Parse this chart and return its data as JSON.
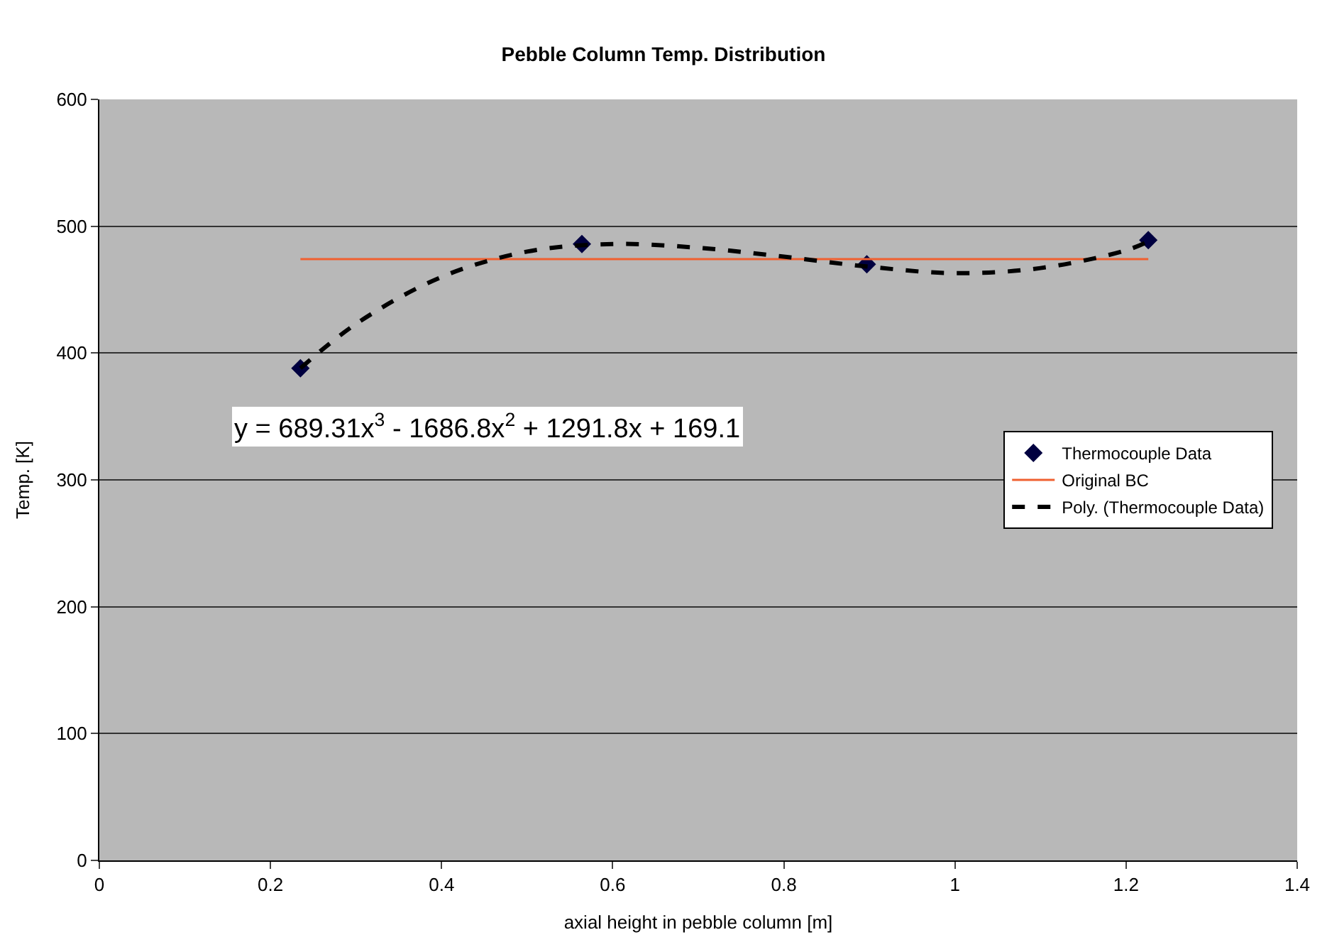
{
  "chart_data": {
    "type": "scatter",
    "title": "Pebble Column Temp. Distribution",
    "xlabel": "axial height in pebble column [m]",
    "ylabel": "Temp. [K]",
    "xlim": [
      0,
      1.4
    ],
    "xticks": [
      0,
      0.2,
      0.4,
      0.6,
      0.8,
      1,
      1.2,
      1.4
    ],
    "ylim": [
      0,
      600
    ],
    "yticks": [
      0,
      100,
      200,
      300,
      400,
      500,
      600
    ],
    "grid": "y",
    "legend": "right",
    "series": [
      {
        "name": "Thermocouple Data",
        "marker": "diamond",
        "color": "#000040",
        "x": [
          0.235,
          0.564,
          0.897,
          1.226
        ],
        "values": [
          388,
          486,
          470,
          489
        ]
      },
      {
        "name": "Original BC",
        "type": "line",
        "marker": "none",
        "line_style": "solid",
        "color": "#f06030",
        "x": [
          0.235,
          1.226
        ],
        "values": [
          474,
          474
        ]
      },
      {
        "name": "Poly. (Thermocouple Data)",
        "type": "line",
        "marker": "none",
        "line_style": "dashed",
        "color": "#000000",
        "x": [
          0.235,
          0.3,
          0.4,
          0.5,
          0.6,
          0.7,
          0.8,
          0.9,
          1.0,
          1.1,
          1.2,
          1.226
        ],
        "values": [
          388,
          423,
          460,
          480,
          486,
          483,
          476,
          468,
          463,
          467,
          481,
          488
        ]
      }
    ],
    "annotations": [
      "y = 689.31x$^{3}$ - 1686.8x$^{2}$ + 1291.8x + 169.1"
    ]
  }
}
